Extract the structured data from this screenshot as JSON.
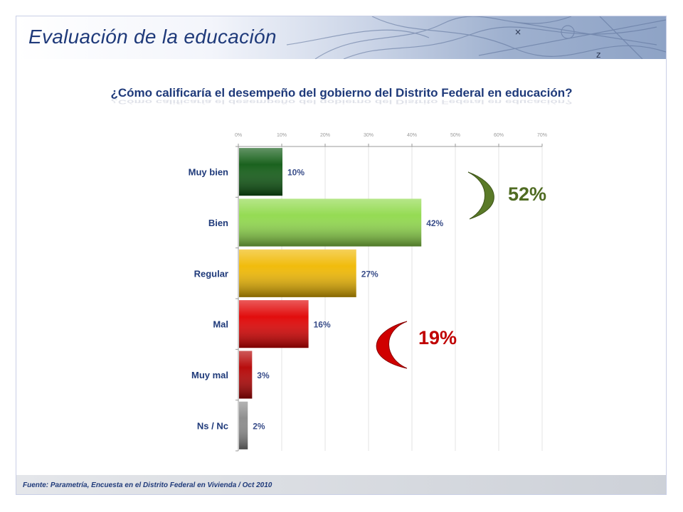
{
  "header": {
    "title": "Evaluación de la educación"
  },
  "footer": {
    "source": "Fuente: Parametría, Encuesta en el Distrito Federal en Vivienda / Oct 2010"
  },
  "colors": {
    "title": "#1f3a7a",
    "positive": "#4f6b22",
    "negative": "#c00000"
  },
  "summaries": {
    "positive": {
      "label": "52%"
    },
    "negative": {
      "label": "19%"
    }
  },
  "chart_data": {
    "type": "bar",
    "orientation": "horizontal",
    "title": "¿Cómo calificaría el desempeño del gobierno del Distrito Federal en educación?",
    "categories": [
      "Muy bien",
      "Bien",
      "Regular",
      "Mal",
      "Muy mal",
      "Ns / Nc"
    ],
    "values": [
      10,
      42,
      27,
      16,
      3,
      2
    ],
    "value_labels": [
      "10%",
      "42%",
      "27%",
      "16%",
      "3%",
      "2%"
    ],
    "bar_colors": [
      "#0e5a12",
      "#8fd94a",
      "#f0b800",
      "#e00000",
      "#b40000",
      "#8a8a8a"
    ],
    "xlim": [
      0,
      70
    ],
    "xticks": [
      "0%",
      "10%",
      "20%",
      "30%",
      "40%",
      "50%",
      "60%",
      "70%"
    ],
    "xaxis_position": "top",
    "grid": true
  }
}
